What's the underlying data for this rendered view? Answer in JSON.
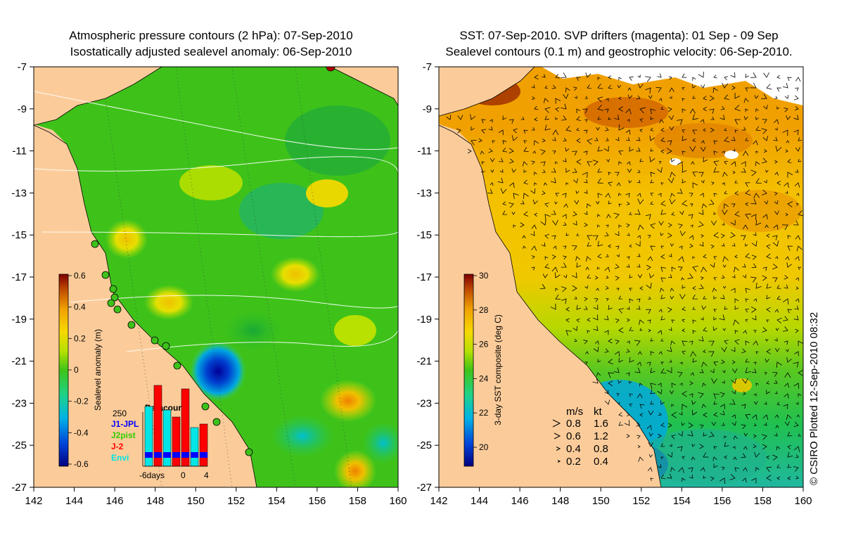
{
  "left_panel": {
    "title_line1": "Atmospheric pressure contours (2 hPa): 07-Sep-2010",
    "title_line2": "Isostatically adjusted sealevel anomaly: 06-Sep-2010",
    "x_ticks": [
      "142",
      "144",
      "146",
      "148",
      "150",
      "152",
      "154",
      "156",
      "158",
      "160"
    ],
    "y_ticks": [
      "-7",
      "-9",
      "-11",
      "-13",
      "-15",
      "-17",
      "-19",
      "-21",
      "-23",
      "-25",
      "-27"
    ],
    "colorbar": {
      "label": "Sealevel anomaly (m)",
      "ticks": [
        "0.6",
        "0.4",
        "0.2",
        "0",
        "-0.2",
        "-0.4",
        "-0.6"
      ],
      "colors": [
        "#00007f",
        "#0046d9",
        "#00b2e6",
        "#1fd28a",
        "#3fc418",
        "#b7e000",
        "#f7d800",
        "#f0a000",
        "#c04b00",
        "#7f0000"
      ]
    },
    "inset": {
      "title": "Datacount",
      "y_max": "250",
      "legend": [
        {
          "name": "J1-JPL",
          "color": "#0000ff"
        },
        {
          "name": "J2pist",
          "color": "#33cc00"
        },
        {
          "name": "J-2",
          "color": "#ff0000"
        },
        {
          "name": "Envi",
          "color": "#00e5e5"
        }
      ],
      "x_labels": [
        "-6days",
        "0",
        "4"
      ]
    }
  },
  "right_panel": {
    "title_line1": "SST: 07-Sep-2010. SVP drifters (magenta): 01 Sep - 09 Sep",
    "title_line2": "Sealevel contours (0.1 m) and geostrophic velocity: 06-Sep-2010.",
    "x_ticks": [
      "142",
      "144",
      "146",
      "148",
      "150",
      "152",
      "154",
      "156",
      "158",
      "160"
    ],
    "y_ticks": [
      "-7",
      "-9",
      "-11",
      "-13",
      "-15",
      "-17",
      "-19",
      "-21",
      "-23",
      "-25",
      "-27"
    ],
    "colorbar": {
      "label": "3-day SST composite (deg C)",
      "ticks": [
        "30",
        "28",
        "26",
        "24",
        "22",
        "20"
      ],
      "colors": [
        "#00007f",
        "#0046d9",
        "#00b2e6",
        "#1fd28a",
        "#3fc418",
        "#b7e000",
        "#f7d800",
        "#f0a000",
        "#c04b00",
        "#7f0000"
      ]
    },
    "velocity_legend": {
      "header_ms": "m/s",
      "header_kt": "kt",
      "rows": [
        {
          "ms": "0.8",
          "kt": "1.6"
        },
        {
          "ms": "0.6",
          "kt": "1.2"
        },
        {
          "ms": "0.4",
          "kt": "0.8"
        },
        {
          "ms": "0.2",
          "kt": "0.4"
        }
      ]
    }
  },
  "credit": "© CSIRO Plotted 12-Sep-2010 08:32"
}
